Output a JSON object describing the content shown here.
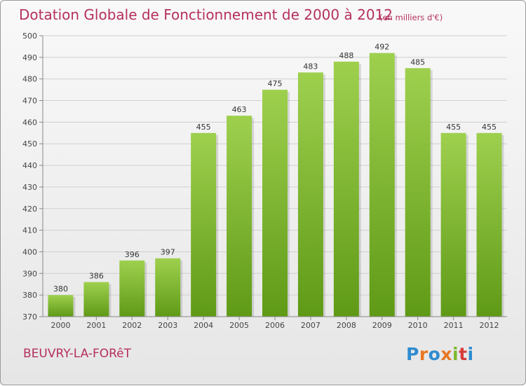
{
  "title": "Dotation Globale de Fonctionnement de 2000 à 2012",
  "units": "(en milliers d'€)",
  "commune": "BEUVRY-LA-FORêT",
  "logo": {
    "text": "Proxiti",
    "colors": [
      "#2f8ccf",
      "#e87722",
      "#2f8ccf",
      "#e87722",
      "#7cb82f",
      "#d63c3c",
      "#2f8ccf"
    ]
  },
  "colors": {
    "bar_top": "#9ed04e",
    "bar_bottom": "#5f9a16",
    "grid": "#d0d0d0",
    "axis": "#888888"
  },
  "chart_data": {
    "type": "bar",
    "categories": [
      "2000",
      "2001",
      "2002",
      "2003",
      "2004",
      "2005",
      "2006",
      "2007",
      "2008",
      "2009",
      "2010",
      "2011",
      "2012"
    ],
    "values": [
      380,
      386,
      396,
      397,
      455,
      463,
      475,
      483,
      488,
      492,
      485,
      455,
      455
    ],
    "ylim": [
      370,
      500
    ],
    "yticks": [
      370,
      380,
      390,
      400,
      410,
      420,
      430,
      440,
      450,
      460,
      470,
      480,
      490,
      500
    ],
    "grid": true,
    "data_labels": true
  }
}
